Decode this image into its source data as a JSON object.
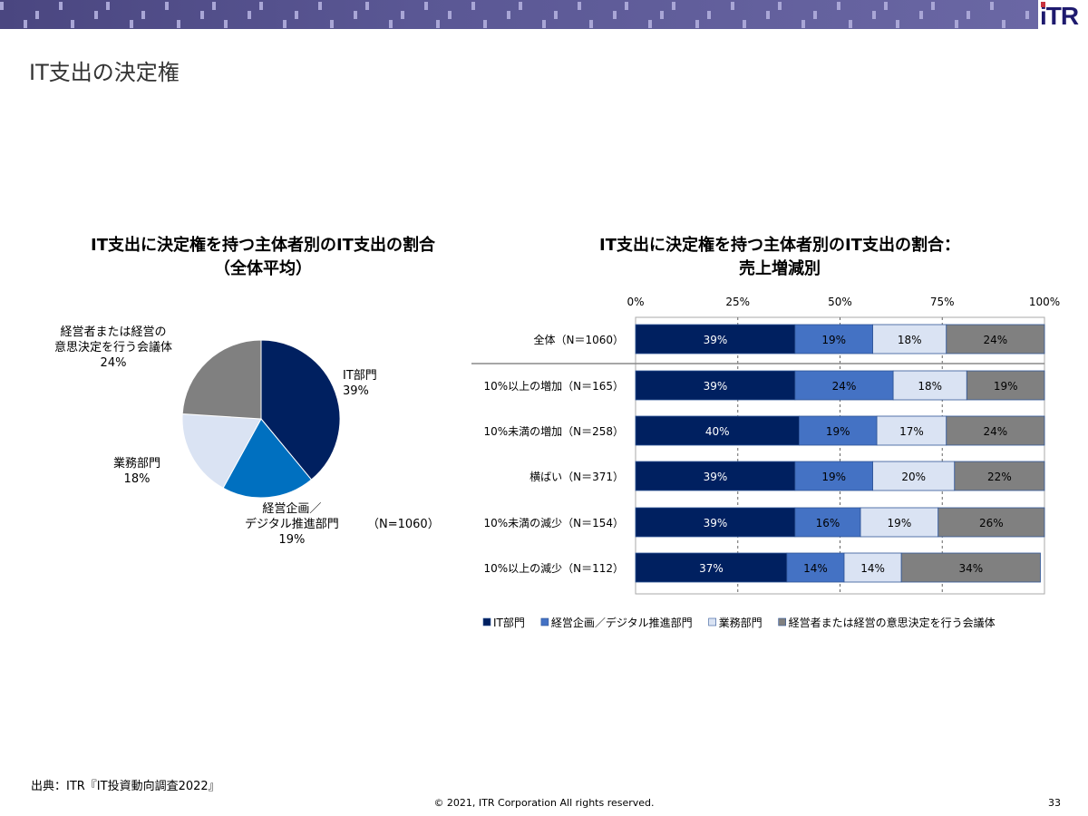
{
  "header": {
    "logo": "iTR",
    "title": "IT支出の決定権"
  },
  "footer": {
    "source": "出典：ITR『IT投資動向調査2022』",
    "copyright": "© 2021, ITR Corporation  All rights reserved.",
    "page": "33"
  },
  "colors": {
    "it": "#002060",
    "plan": "#4472C4",
    "plan_pie": "#0070C0",
    "biz": "#DAE3F3",
    "exec": "#808080"
  },
  "chart_data": [
    {
      "type": "pie",
      "title": "IT支出に決定権を持つ主体者別のIT支出の割合",
      "subtitle": "（全体平均）",
      "note": "（N=1060）",
      "slices": [
        {
          "name": "IT部門",
          "value": 39,
          "label": "IT部門",
          "pct": "39%"
        },
        {
          "name": "経営企画／デジタル推進部門",
          "value": 19,
          "label": "経営企画／\nデジタル推進部門",
          "pct": "19%"
        },
        {
          "name": "業務部門",
          "value": 18,
          "label": "業務部門",
          "pct": "18%"
        },
        {
          "name": "経営者または経営の意思決定を行う会議体",
          "value": 24,
          "label": "経営者または経営の\n意思決定を行う会議体",
          "pct": "24%"
        }
      ]
    },
    {
      "type": "bar",
      "stacked": true,
      "orientation": "horizontal",
      "title": "IT支出に決定権を持つ主体者別のIT支出の割合：",
      "subtitle": "売上増減別",
      "xlim": [
        0,
        100
      ],
      "xticks": [
        "0%",
        "25%",
        "50%",
        "75%",
        "100%"
      ],
      "categories": [
        "全体（N＝1060）",
        "10%以上の増加（N＝165）",
        "10%未満の増加（N＝258）",
        "横ばい（N＝371）",
        "10%未満の減少（N＝154）",
        "10%以上の減少（N＝112）"
      ],
      "series": [
        {
          "name": "IT部門",
          "values": [
            39,
            39,
            40,
            39,
            39,
            37
          ]
        },
        {
          "name": "経営企画／デジタル推進部門",
          "values": [
            19,
            24,
            19,
            19,
            16,
            14
          ]
        },
        {
          "name": "業務部門",
          "values": [
            18,
            18,
            17,
            20,
            19,
            14
          ]
        },
        {
          "name": "経営者または経営の意思決定を行う会議体",
          "values": [
            24,
            19,
            24,
            22,
            26,
            34
          ]
        }
      ],
      "legend": "bottom"
    }
  ]
}
